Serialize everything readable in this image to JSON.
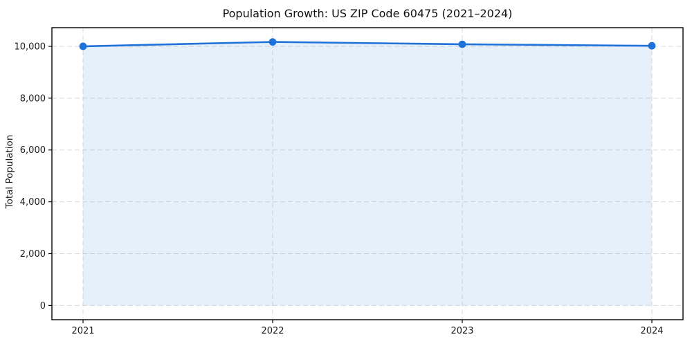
{
  "chart_data": {
    "type": "area",
    "title": "Population Growth: US ZIP Code 60475 (2021–2024)",
    "xlabel": "",
    "ylabel": "Total Population",
    "categories": [
      "2021",
      "2022",
      "2023",
      "2024"
    ],
    "series": [
      {
        "name": "Total Population",
        "values": [
          10000,
          10170,
          10080,
          10020
        ]
      }
    ],
    "yticks": [
      0,
      2000,
      4000,
      6000,
      8000,
      10000
    ],
    "ylim": [
      -550,
      10720
    ],
    "grid": true,
    "grid_style": "dashed",
    "legend_position": "none",
    "marker": "circle",
    "line_color": "#1f72d9",
    "marker_color": "#1f72d9",
    "fill_color": "#1f72d9",
    "fill_opacity": 0.11,
    "grid_color": "#dadada",
    "axis_color": "#000000",
    "background": "#ffffff"
  }
}
